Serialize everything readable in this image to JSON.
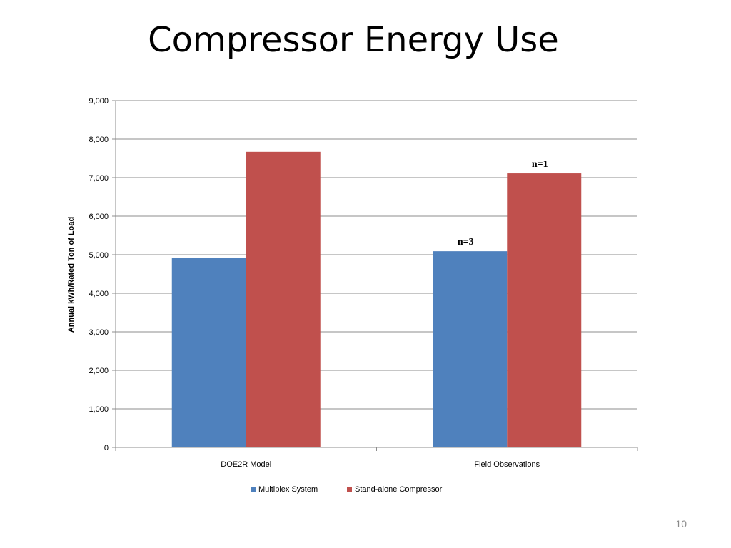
{
  "slide": {
    "title": "Compressor Energy Use",
    "page_number": "10"
  },
  "chart_data": {
    "type": "bar",
    "title": "",
    "xlabel": "",
    "ylabel": "Annual kWh/Rated Ton of Load",
    "ylim": [
      0,
      9000
    ],
    "yticks": [
      0,
      1000,
      2000,
      3000,
      4000,
      5000,
      6000,
      7000,
      8000,
      9000
    ],
    "ytick_labels": [
      "0",
      "1,000",
      "2,000",
      "3,000",
      "4,000",
      "5,000",
      "6,000",
      "7,000",
      "8,000",
      "9,000"
    ],
    "grid": true,
    "legend_position": "bottom",
    "categories": [
      "DOE2R Model",
      "Field Observations"
    ],
    "series": [
      {
        "name": "Multiplex System",
        "color": "#4F81BD",
        "values": [
          4920,
          5090
        ],
        "annotations": [
          "",
          "n=3"
        ]
      },
      {
        "name": "Stand-alone Compressor",
        "color": "#C0504D",
        "values": [
          7670,
          7110
        ],
        "annotations": [
          "",
          "n=1"
        ]
      }
    ]
  }
}
